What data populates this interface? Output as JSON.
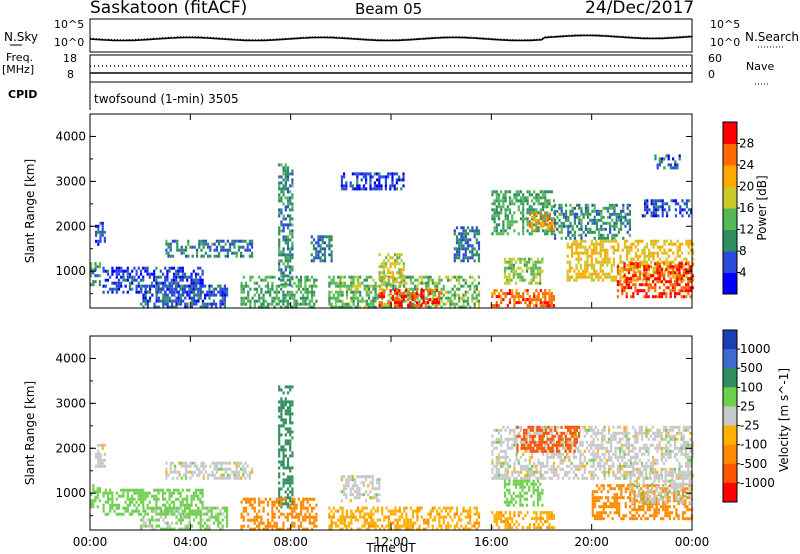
{
  "header": {
    "station": "Saskatoon (fitACF)",
    "beam": "Beam 05",
    "date": "24/Dec/2017"
  },
  "noise_panel": {
    "left_label": "N.Sky",
    "right_label": "N.Search",
    "tick_top": "10^5",
    "tick_bottom": "10^0"
  },
  "freq_panel": {
    "left_label_top": "Freq.",
    "left_label_unit": "[MHz]",
    "right_label": "Nave",
    "tick_left_top": "18",
    "tick_left_bottom": "8",
    "tick_right_top": "60",
    "tick_right_bottom": "0"
  },
  "cpid_panel": {
    "label": "CPID",
    "program": "twofsound (1-min) 3505"
  },
  "x_axis": {
    "label": "Time UT",
    "ticks": [
      "00:00",
      "04:00",
      "08:00",
      "12:00",
      "16:00",
      "20:00",
      "00:00"
    ]
  },
  "colors": {
    "power_scale": [
      "#0000ff",
      "#2a4bd7",
      "#2f8f5f",
      "#57b857",
      "#c9c92a",
      "#ffa800",
      "#ff6a00",
      "#ff0000"
    ],
    "velocity_scale": [
      "#1b3fb3",
      "#3d6bd0",
      "#2f8f5f",
      "#6fcf4f",
      "#c8c8c8",
      "#ffb000",
      "#ff8a00",
      "#ff5500",
      "#ff0000"
    ]
  },
  "chart_data": [
    {
      "type": "heatmap",
      "title": "",
      "xlabel": "",
      "ylabel": "Slant Range [km]",
      "xlim": [
        0,
        24
      ],
      "ylim": [
        180,
        4500
      ],
      "yticks": [
        "1000",
        "2000",
        "3000",
        "4000"
      ],
      "colorbar": {
        "label": "Power [dB]",
        "ticks": [
          "4",
          "8",
          "12",
          "16",
          "20",
          "24",
          "28"
        ],
        "range": [
          0,
          32
        ]
      },
      "regions": [
        {
          "t0": 0.2,
          "t1": 0.6,
          "r0": 1600,
          "r1": 2100,
          "v": 6
        },
        {
          "t0": 0.0,
          "t1": 0.4,
          "r0": 700,
          "r1": 1200,
          "v": 10
        },
        {
          "t0": 0.5,
          "t1": 4.5,
          "r0": 500,
          "r1": 1100,
          "v": 5
        },
        {
          "t0": 2.0,
          "t1": 5.5,
          "r0": 200,
          "r1": 700,
          "v": 7
        },
        {
          "t0": 3.0,
          "t1": 6.5,
          "r0": 1300,
          "r1": 1700,
          "v": 9
        },
        {
          "t0": 7.5,
          "t1": 8.1,
          "r0": 700,
          "r1": 3400,
          "v": 10
        },
        {
          "t0": 6.0,
          "t1": 9.0,
          "r0": 200,
          "r1": 900,
          "v": 12
        },
        {
          "t0": 8.8,
          "t1": 9.6,
          "r0": 1200,
          "r1": 1800,
          "v": 8
        },
        {
          "t0": 10.0,
          "t1": 12.5,
          "r0": 2800,
          "r1": 3200,
          "v": 5
        },
        {
          "t0": 9.5,
          "t1": 15.5,
          "r0": 200,
          "r1": 900,
          "v": 14
        },
        {
          "t0": 11.5,
          "t1": 12.5,
          "r0": 700,
          "r1": 1400,
          "v": 18
        },
        {
          "t0": 11.5,
          "t1": 14.0,
          "r0": 250,
          "r1": 600,
          "v": 28
        },
        {
          "t0": 14.5,
          "t1": 15.5,
          "r0": 1200,
          "r1": 2000,
          "v": 8
        },
        {
          "t0": 16.0,
          "t1": 18.5,
          "r0": 1800,
          "r1": 2800,
          "v": 12
        },
        {
          "t0": 17.5,
          "t1": 18.5,
          "r0": 1900,
          "r1": 2300,
          "v": 24
        },
        {
          "t0": 18.5,
          "t1": 21.5,
          "r0": 1700,
          "r1": 2500,
          "v": 10
        },
        {
          "t0": 16.5,
          "t1": 18.0,
          "r0": 700,
          "r1": 1300,
          "v": 15
        },
        {
          "t0": 16.0,
          "t1": 18.5,
          "r0": 250,
          "r1": 600,
          "v": 26
        },
        {
          "t0": 19.0,
          "t1": 24.0,
          "r0": 800,
          "r1": 1700,
          "v": 20
        },
        {
          "t0": 21.0,
          "t1": 24.0,
          "r0": 400,
          "r1": 1200,
          "v": 28
        },
        {
          "t0": 22.0,
          "t1": 24.0,
          "r0": 2200,
          "r1": 2600,
          "v": 6
        },
        {
          "t0": 22.5,
          "t1": 23.5,
          "r0": 3300,
          "r1": 3600,
          "v": 6
        }
      ]
    },
    {
      "type": "heatmap",
      "title": "",
      "xlabel": "Time UT",
      "ylabel": "Slant Range [km]",
      "xlim": [
        0,
        24
      ],
      "ylim": [
        180,
        4500
      ],
      "yticks": [
        "1000",
        "2000",
        "3000",
        "4000"
      ],
      "colorbar": {
        "label": "Velocity [m s^-1]",
        "ticks": [
          "1000",
          "500",
          "100",
          "25",
          "-25",
          "-100",
          "-500",
          "-1000"
        ]
      },
      "regions": [
        {
          "t0": 0.2,
          "t1": 0.6,
          "r0": 1600,
          "r1": 2100,
          "v": 0
        },
        {
          "t0": 0.0,
          "t1": 0.4,
          "r0": 700,
          "r1": 1200,
          "v": 60
        },
        {
          "t0": 0.5,
          "t1": 4.5,
          "r0": 500,
          "r1": 1100,
          "v": 60
        },
        {
          "t0": 2.0,
          "t1": 5.5,
          "r0": 200,
          "r1": 700,
          "v": 40
        },
        {
          "t0": 3.0,
          "t1": 6.5,
          "r0": 1300,
          "r1": 1700,
          "v": 0
        },
        {
          "t0": 7.5,
          "t1": 8.1,
          "r0": 700,
          "r1": 3400,
          "v": 300
        },
        {
          "t0": 6.0,
          "t1": 9.0,
          "r0": 200,
          "r1": 900,
          "v": -200
        },
        {
          "t0": 10.0,
          "t1": 11.5,
          "r0": 800,
          "r1": 1400,
          "v": 0
        },
        {
          "t0": 9.5,
          "t1": 15.5,
          "r0": 200,
          "r1": 700,
          "v": -80
        },
        {
          "t0": 16.0,
          "t1": 24.0,
          "r0": 1300,
          "r1": 2500,
          "v": 0
        },
        {
          "t0": 17.0,
          "t1": 19.5,
          "r0": 1900,
          "r1": 2500,
          "v": -700
        },
        {
          "t0": 16.5,
          "t1": 18.0,
          "r0": 700,
          "r1": 1300,
          "v": 60
        },
        {
          "t0": 16.0,
          "t1": 18.5,
          "r0": 250,
          "r1": 600,
          "v": -80
        },
        {
          "t0": 20.0,
          "t1": 24.0,
          "r0": 400,
          "r1": 1200,
          "v": -200
        },
        {
          "t0": 21.5,
          "t1": 24.0,
          "r0": 800,
          "r1": 1500,
          "v": 0
        }
      ]
    }
  ]
}
